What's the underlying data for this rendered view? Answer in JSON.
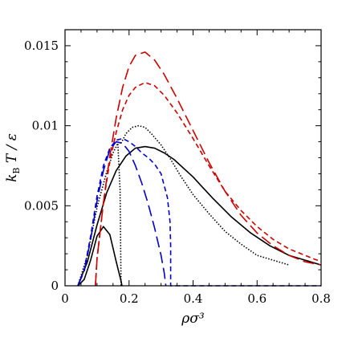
{
  "chart_data": {
    "type": "line",
    "xlabel": "ρσ³",
    "ylabel": "k_B T / ε",
    "xlim": [
      0,
      0.8
    ],
    "ylim": [
      0,
      0.016
    ],
    "x_ticks": [
      "0",
      "0.2",
      "0.4",
      "0.6",
      "0.8"
    ],
    "y_ticks": [
      "0",
      "0.005",
      "0.01",
      "0.015"
    ],
    "grid": false,
    "legend": "none",
    "series": [
      {
        "color": "#000000",
        "dash": "solid",
        "x": [
          0.04,
          0.06,
          0.08,
          0.1,
          0.12,
          0.14,
          0.16,
          0.175,
          0.178
        ],
        "y": [
          0.0,
          0.0004,
          0.0016,
          0.0031,
          0.0037,
          0.0032,
          0.0015,
          0.0003,
          0.0
        ]
      },
      {
        "color": "#000000",
        "dash": "solid",
        "x": [
          0.04,
          0.07,
          0.1,
          0.13,
          0.16,
          0.19,
          0.22,
          0.25,
          0.28,
          0.31,
          0.34,
          0.4,
          0.46,
          0.52,
          0.58,
          0.64,
          0.7,
          0.75,
          0.8
        ],
        "y": [
          0.0,
          0.0015,
          0.0038,
          0.0058,
          0.0072,
          0.0081,
          0.0086,
          0.0087,
          0.0086,
          0.0083,
          0.0079,
          0.0068,
          0.0055,
          0.0043,
          0.0033,
          0.0025,
          0.0019,
          0.0016,
          0.0013
        ]
      },
      {
        "color": "#000000",
        "dash": "dotted",
        "x": [
          0.04,
          0.07,
          0.1,
          0.13,
          0.15,
          0.165,
          0.172,
          0.175
        ],
        "y": [
          0.0,
          0.0019,
          0.0049,
          0.0071,
          0.0083,
          0.0089,
          0.006,
          0.0
        ]
      },
      {
        "color": "#000000",
        "dash": "dotted",
        "x": [
          0.175,
          0.19,
          0.21,
          0.23,
          0.25,
          0.27,
          0.3,
          0.33,
          0.36,
          0.4,
          0.45,
          0.5,
          0.55,
          0.6,
          0.65,
          0.7
        ],
        "y": [
          0.0089,
          0.0095,
          0.0099,
          0.01,
          0.0099,
          0.0095,
          0.0088,
          0.0079,
          0.0069,
          0.0057,
          0.0045,
          0.0034,
          0.0026,
          0.0019,
          0.0016,
          0.0013
        ]
      },
      {
        "color": "#cc0000",
        "dash": "long-dash",
        "x": [
          0.095,
          0.1,
          0.12,
          0.14,
          0.16,
          0.18,
          0.2,
          0.22,
          0.25,
          0.28,
          0.31,
          0.35,
          0.4,
          0.45,
          0.5,
          0.55,
          0.6,
          0.65,
          0.7,
          0.75,
          0.8
        ],
        "y": [
          0.0,
          0.0017,
          0.0052,
          0.0081,
          0.0105,
          0.0124,
          0.0137,
          0.0144,
          0.0146,
          0.0141,
          0.0132,
          0.0117,
          0.0097,
          0.0077,
          0.0059,
          0.0044,
          0.0033,
          0.0025,
          0.0019,
          0.0015,
          0.0013
        ]
      },
      {
        "color": "#cc0000",
        "dash": "short-dash",
        "x": [
          0.095,
          0.1,
          0.12,
          0.14,
          0.16,
          0.18,
          0.2,
          0.22,
          0.25,
          0.28,
          0.31,
          0.35,
          0.4,
          0.45,
          0.5,
          0.55,
          0.6,
          0.65,
          0.7,
          0.75,
          0.8
        ],
        "y": [
          0.0,
          0.0017,
          0.0052,
          0.0078,
          0.0096,
          0.011,
          0.0119,
          0.0124,
          0.0127,
          0.0125,
          0.0119,
          0.0108,
          0.0092,
          0.0075,
          0.0059,
          0.0047,
          0.0037,
          0.0029,
          0.0023,
          0.0019,
          0.0015
        ]
      },
      {
        "color": "#0000cc",
        "dash": "long-dash",
        "x": [
          0.04,
          0.06,
          0.08,
          0.1,
          0.12,
          0.14,
          0.16,
          0.18,
          0.2,
          0.22,
          0.24,
          0.26,
          0.28,
          0.3,
          0.31,
          0.315
        ],
        "y": [
          0.0,
          0.0009,
          0.0029,
          0.0053,
          0.0072,
          0.0085,
          0.009,
          0.0089,
          0.0084,
          0.0075,
          0.0064,
          0.0051,
          0.0036,
          0.0019,
          0.0008,
          0.0
        ]
      },
      {
        "color": "#0000cc",
        "dash": "short-dash",
        "x": [
          0.04,
          0.06,
          0.08,
          0.1,
          0.12,
          0.14,
          0.16,
          0.18,
          0.2,
          0.22,
          0.24,
          0.26,
          0.28,
          0.3,
          0.32,
          0.328,
          0.33,
          0.33,
          0.8
        ],
        "y": [
          0.0,
          0.001,
          0.0031,
          0.0056,
          0.0075,
          0.0086,
          0.0091,
          0.0092,
          0.009,
          0.0087,
          0.0083,
          0.008,
          0.0076,
          0.007,
          0.0055,
          0.004,
          0.0025,
          0.0,
          0.0
        ]
      }
    ]
  }
}
